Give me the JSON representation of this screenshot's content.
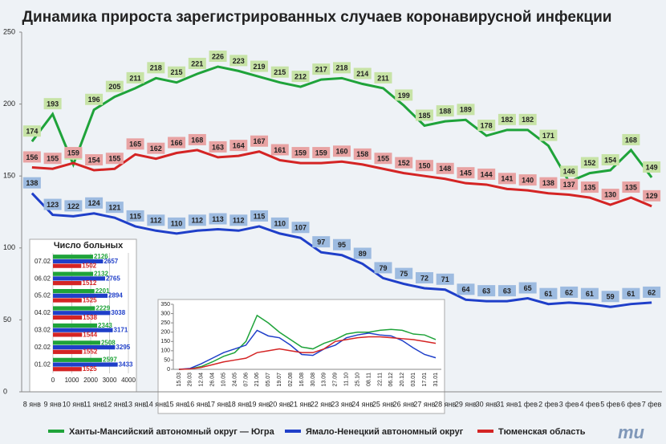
{
  "chart_data": [
    {
      "type": "line",
      "title": "Динамика прироста зарегистрированных случаев коронавирусной инфекции",
      "categories": [
        "8 янв",
        "9 янв",
        "10 янв",
        "11 янв",
        "12 янв",
        "13 янв",
        "14 янв",
        "15 янв",
        "16 янв",
        "17 янв",
        "18 янв",
        "19 янв",
        "20 янв",
        "21 янв",
        "22 янв",
        "23 янв",
        "24 янв",
        "25 янв",
        "26 янв",
        "27 янв",
        "28 янв",
        "29 янв",
        "30 янв",
        "31 янв",
        "1 фев",
        "2 фев",
        "3 фев",
        "4 фев",
        "5 фев",
        "6 фев",
        "7 фев"
      ],
      "series": [
        {
          "name": "Ханты-Мансийский автономный округ — Югра",
          "color": "#1fa33a",
          "label_color": "#c7e3a6",
          "values": [
            174,
            193,
            158,
            196,
            205,
            211,
            218,
            215,
            221,
            226,
            223,
            219,
            215,
            212,
            217,
            218,
            214,
            211,
            199,
            185,
            188,
            189,
            178,
            182,
            182,
            171,
            146,
            152,
            154,
            168,
            149
          ]
        },
        {
          "name": "Ямало-Ненецкий автономный округ",
          "color": "#1f3fc9",
          "label_color": "#9dbbe0",
          "values": [
            138,
            123,
            122,
            124,
            121,
            115,
            112,
            110,
            112,
            113,
            112,
            115,
            110,
            107,
            97,
            95,
            89,
            79,
            75,
            72,
            71,
            64,
            63,
            63,
            65,
            61,
            62,
            61,
            59,
            61,
            62
          ]
        },
        {
          "name": "Тюменская область",
          "color": "#d42424",
          "label_color": "#e8a3a3",
          "values": [
            156,
            155,
            159,
            154,
            155,
            165,
            162,
            166,
            168,
            163,
            164,
            167,
            161,
            159,
            159,
            160,
            158,
            155,
            152,
            150,
            148,
            145,
            144,
            141,
            140,
            138,
            137,
            135,
            130,
            135,
            129
          ]
        }
      ],
      "ylim": [
        0,
        250
      ],
      "yticks": [
        0,
        50,
        100,
        150,
        200,
        250
      ],
      "legend": "bottom"
    },
    {
      "type": "bar",
      "orientation": "horizontal",
      "title": "Число больных",
      "categories": [
        "07.02",
        "06.02",
        "05.02",
        "04.02",
        "03.02",
        "02.02",
        "01.02"
      ],
      "series": [
        {
          "color": "#1fa33a",
          "values": [
            2126,
            2132,
            2201,
            2229,
            2343,
            2508,
            2597
          ]
        },
        {
          "color": "#1f3fc9",
          "values": [
            2657,
            2765,
            2894,
            3038,
            3171,
            3295,
            3433
          ]
        },
        {
          "color": "#d42424",
          "values": [
            1502,
            1512,
            1525,
            1538,
            1544,
            1552,
            1525
          ]
        }
      ],
      "xlim": [
        0,
        4000
      ],
      "xticks": [
        0,
        1000,
        2000,
        3000,
        4000
      ]
    },
    {
      "type": "line",
      "categories": [
        "15.03",
        "29.03",
        "12.04",
        "26.04",
        "10.05",
        "24.05",
        "07.06",
        "21.06",
        "05.07",
        "19.07",
        "02.08",
        "16.08",
        "30.08",
        "13.09",
        "27.09",
        "11.10",
        "25.10",
        "08.11",
        "22.11",
        "06.12",
        "20.12",
        "03.01",
        "17.01",
        "31.01"
      ],
      "series": [
        {
          "color": "#1fa33a",
          "values": [
            0,
            2,
            15,
            40,
            70,
            90,
            150,
            290,
            250,
            200,
            160,
            120,
            110,
            140,
            160,
            190,
            200,
            200,
            210,
            215,
            210,
            190,
            185,
            160
          ]
        },
        {
          "color": "#1f3fc9",
          "values": [
            0,
            5,
            30,
            60,
            90,
            110,
            130,
            210,
            180,
            170,
            130,
            80,
            75,
            110,
            130,
            170,
            185,
            195,
            185,
            180,
            155,
            115,
            80,
            62
          ]
        },
        {
          "color": "#d42424",
          "values": [
            0,
            2,
            10,
            25,
            40,
            50,
            60,
            90,
            100,
            110,
            100,
            90,
            90,
            110,
            150,
            160,
            170,
            175,
            175,
            170,
            165,
            160,
            150,
            140
          ]
        }
      ],
      "ylim": [
        0,
        350
      ],
      "yticks": [
        0,
        50,
        100,
        150,
        200,
        250,
        300,
        350
      ]
    }
  ]
}
